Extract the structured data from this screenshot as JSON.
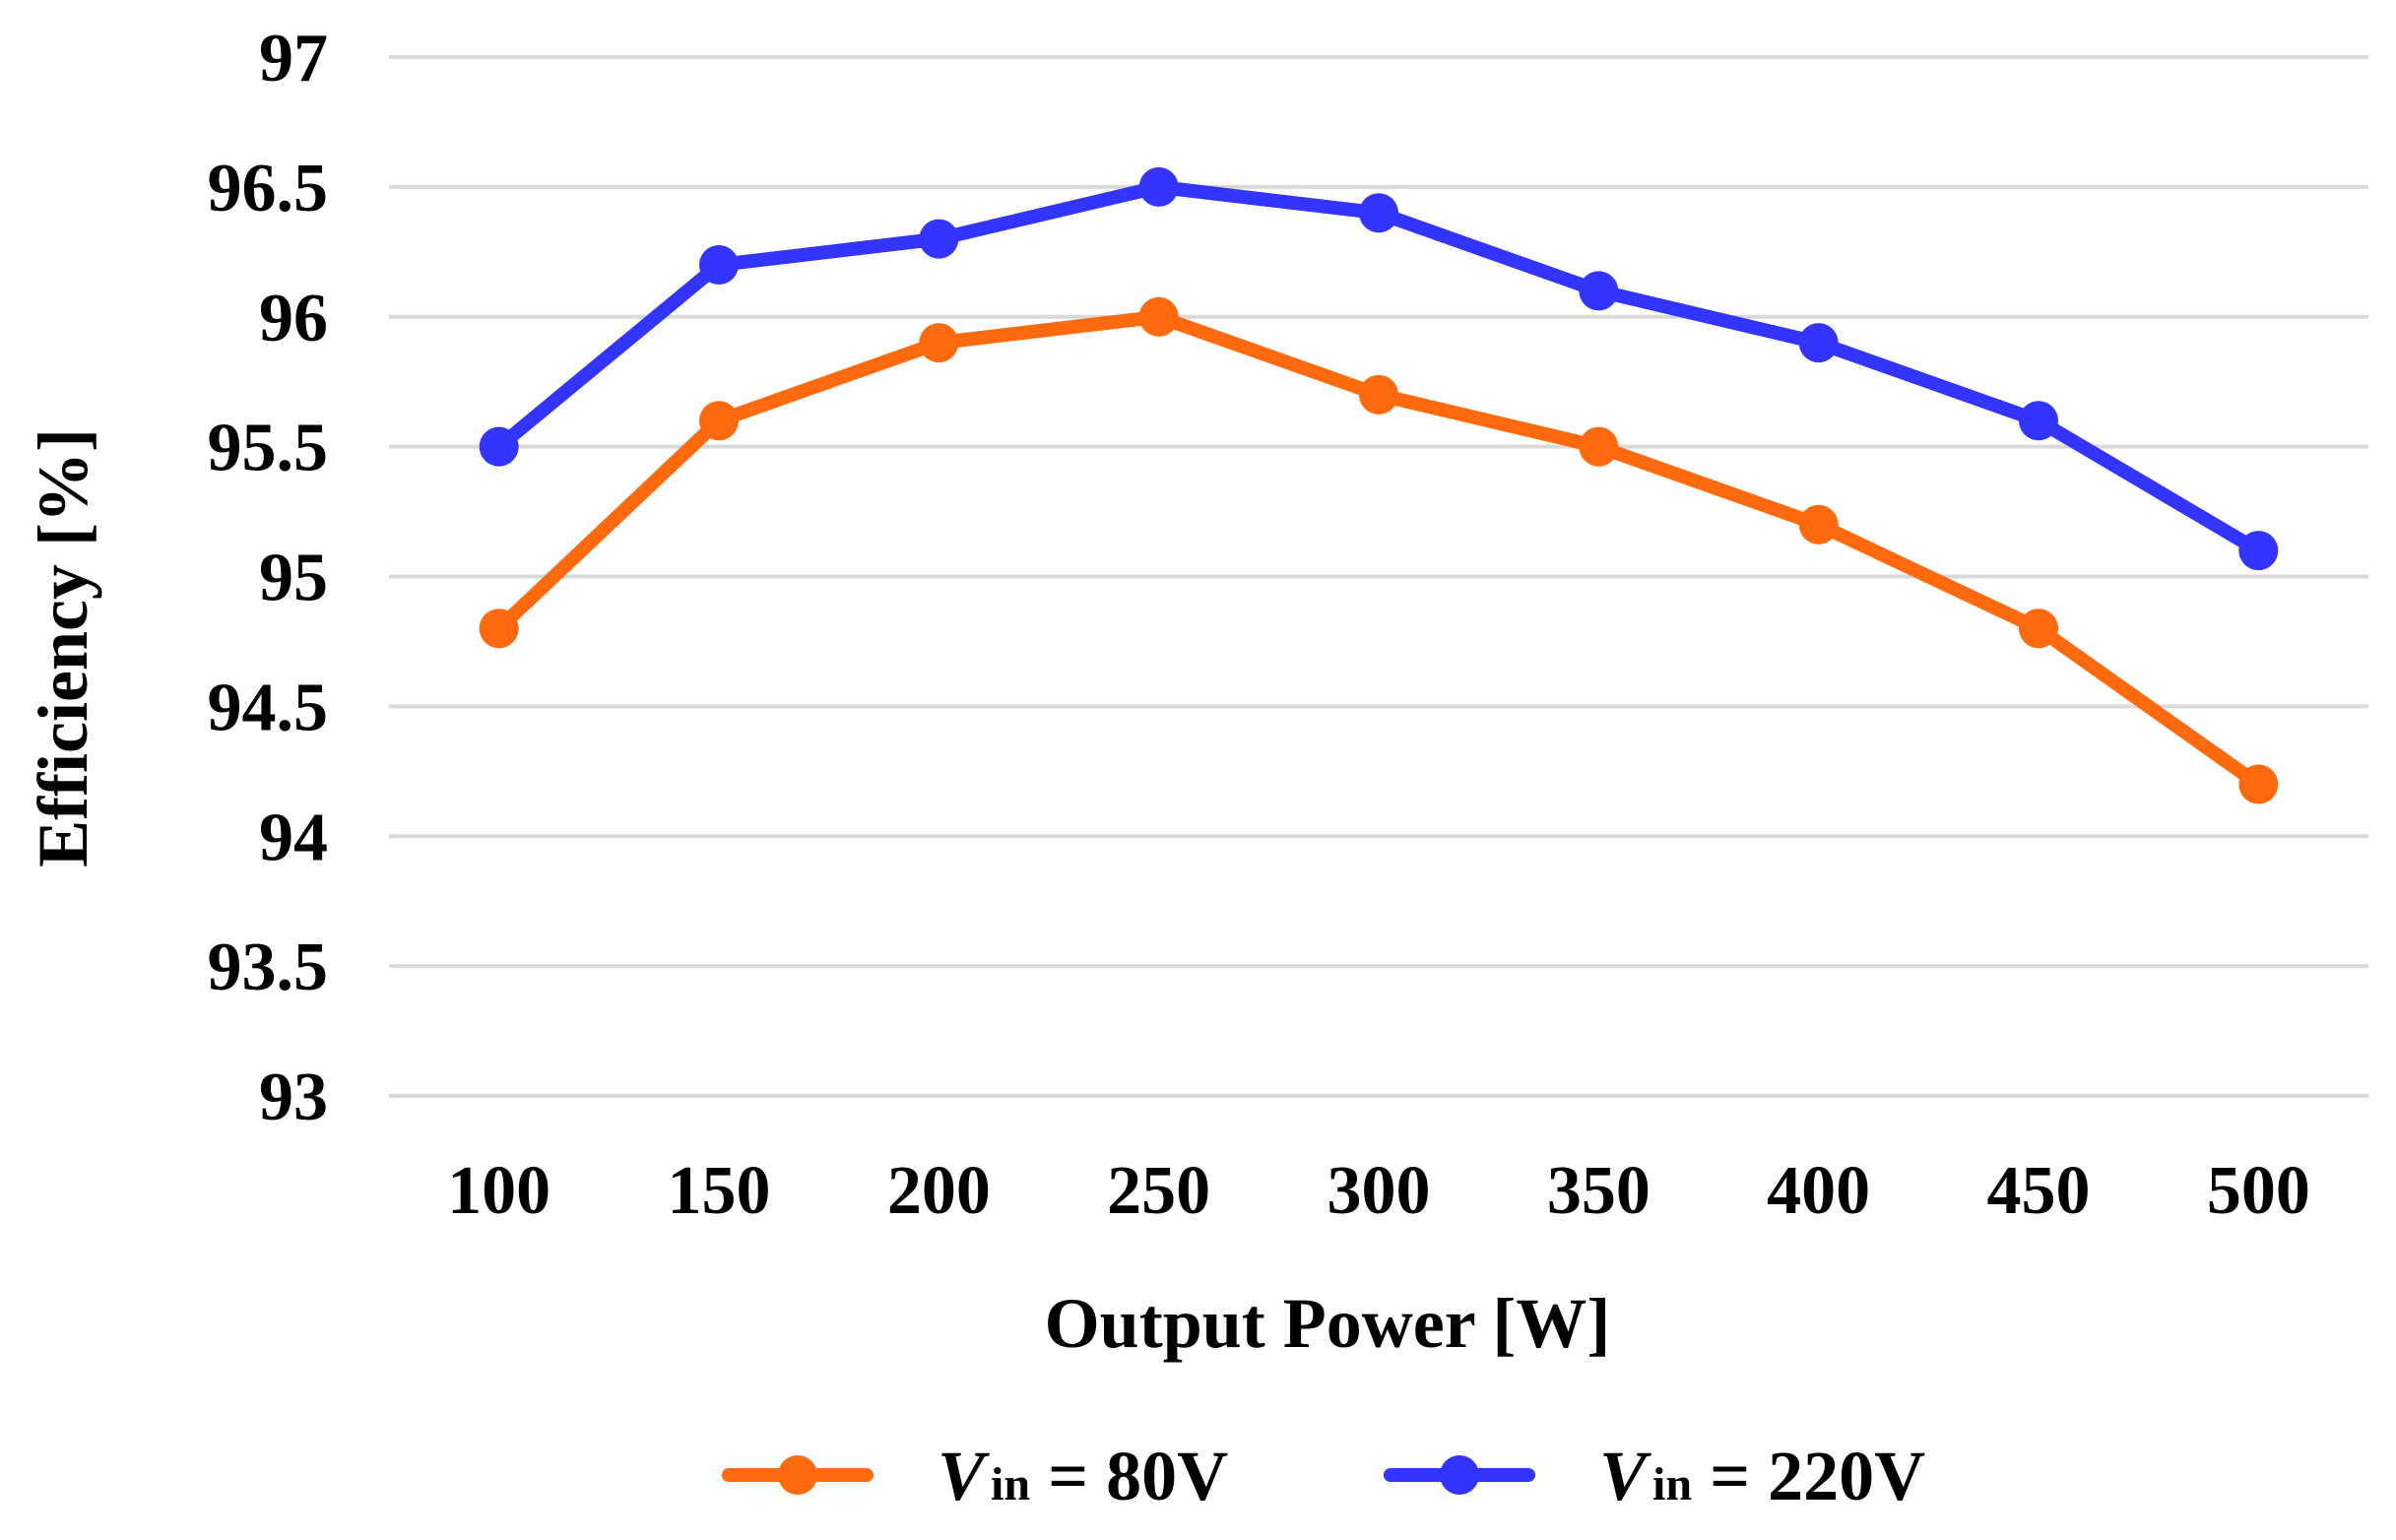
{
  "chart_data": {
    "type": "line",
    "categories": [
      "100",
      "150",
      "200",
      "250",
      "300",
      "350",
      "400",
      "450",
      "500"
    ],
    "series": [
      {
        "name": "Vin = 80V",
        "legend_main": "V",
        "legend_sub": "in",
        "legend_rest": " = 80V",
        "color": "#ff6a0e",
        "values": [
          94.8,
          95.6,
          95.9,
          96.0,
          95.7,
          95.5,
          95.2,
          94.8,
          94.2
        ]
      },
      {
        "name": "Vin = 220V",
        "legend_main": "V",
        "legend_sub": "in",
        "legend_rest": " = 220V",
        "color": "#3434ff",
        "values": [
          95.5,
          96.2,
          96.3,
          96.5,
          96.4,
          96.1,
          95.9,
          95.6,
          95.1
        ]
      }
    ],
    "yticks": [
      "93",
      "93.5",
      "94",
      "94.5",
      "95",
      "95.5",
      "96",
      "96.5",
      "97"
    ],
    "ylim": [
      93,
      97
    ],
    "xlabel": "Output Power [W]",
    "ylabel": "Efficiency [%]",
    "grid": true,
    "legend_position": "bottom"
  }
}
